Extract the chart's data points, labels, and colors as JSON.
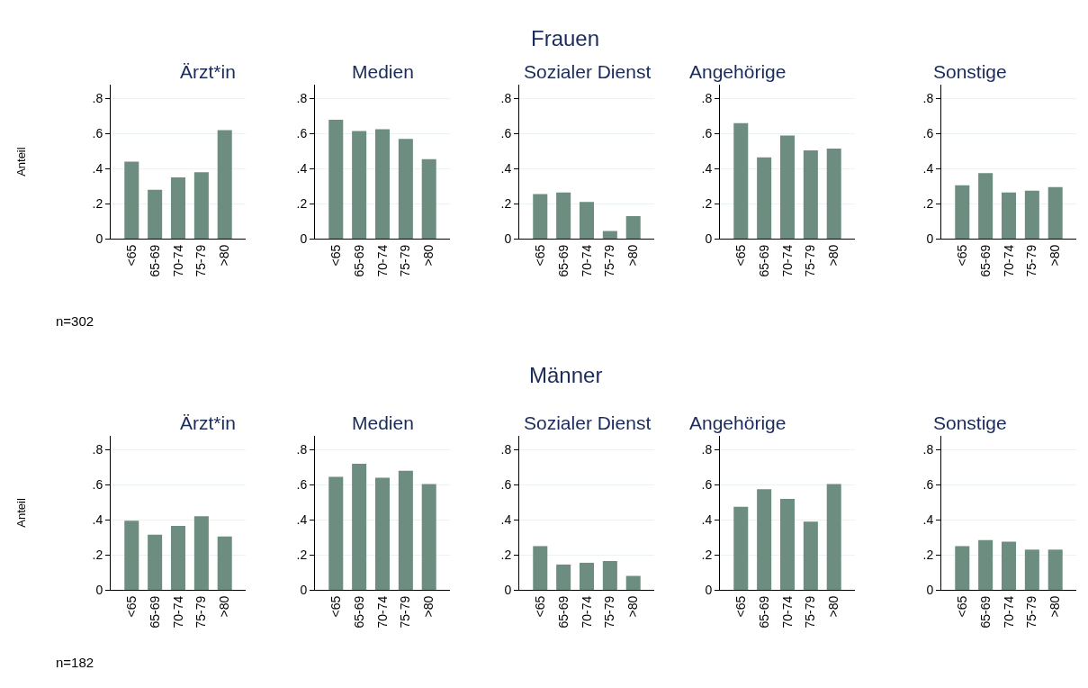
{
  "chart_data": [
    {
      "type": "bar",
      "title": "Ärzt*in",
      "ylabel": "Anteil",
      "annotations": [
        "Frauen",
        "n=302"
      ],
      "categories": [
        "<65",
        "65-69",
        "70-74",
        "75-79",
        ">80"
      ],
      "values": [
        0.44,
        0.28,
        0.35,
        0.38,
        0.62
      ],
      "color": "#6e8d81",
      "ylim": [
        0,
        0.88
      ],
      "yticks": [
        0,
        {
          "value": 0.2,
          "label": ".2"
        },
        {
          "value": 0.4,
          "label": ".4"
        },
        {
          "value": 0.6,
          "label": ".6"
        },
        {
          "value": 0.8,
          "label": ".8"
        }
      ],
      "grid": "y",
      "legend": false
    },
    {
      "type": "bar",
      "title": "Medien",
      "categories": [
        "<65",
        "65-69",
        "70-74",
        "75-79",
        ">80"
      ],
      "values": [
        0.68,
        0.615,
        0.625,
        0.57,
        0.455
      ],
      "color": "#6e8d81",
      "ylim": [
        0,
        0.88
      ],
      "yticks": [
        0,
        {
          "value": 0.2,
          "label": ".2"
        },
        {
          "value": 0.4,
          "label": ".4"
        },
        {
          "value": 0.6,
          "label": ".6"
        },
        {
          "value": 0.8,
          "label": ".8"
        }
      ],
      "grid": "y",
      "legend": false
    },
    {
      "type": "bar",
      "title": "Sozialer Dienst",
      "categories": [
        "<65",
        "65-69",
        "70-74",
        "75-79",
        ">80"
      ],
      "values": [
        0.255,
        0.265,
        0.21,
        0.045,
        0.13
      ],
      "color": "#6e8d81",
      "ylim": [
        0,
        0.88
      ],
      "yticks": [
        0,
        {
          "value": 0.2,
          "label": ".2"
        },
        {
          "value": 0.4,
          "label": ".4"
        },
        {
          "value": 0.6,
          "label": ".6"
        },
        {
          "value": 0.8,
          "label": ".8"
        }
      ],
      "grid": "y",
      "legend": false
    },
    {
      "type": "bar",
      "title": "Angehörige",
      "categories": [
        "<65",
        "65-69",
        "70-74",
        "75-79",
        ">80"
      ],
      "values": [
        0.66,
        0.465,
        0.59,
        0.505,
        0.515
      ],
      "color": "#6e8d81",
      "ylim": [
        0,
        0.88
      ],
      "yticks": [
        0,
        {
          "value": 0.2,
          "label": ".2"
        },
        {
          "value": 0.4,
          "label": ".4"
        },
        {
          "value": 0.6,
          "label": ".6"
        },
        {
          "value": 0.8,
          "label": ".8"
        }
      ],
      "grid": "y",
      "legend": false
    },
    {
      "type": "bar",
      "title": "Sonstige",
      "categories": [
        "<65",
        "65-69",
        "70-74",
        "75-79",
        ">80"
      ],
      "values": [
        0.305,
        0.375,
        0.265,
        0.275,
        0.295
      ],
      "color": "#6e8d81",
      "ylim": [
        0,
        0.88
      ],
      "yticks": [
        0,
        {
          "value": 0.2,
          "label": ".2"
        },
        {
          "value": 0.4,
          "label": ".4"
        },
        {
          "value": 0.6,
          "label": ".6"
        },
        {
          "value": 0.8,
          "label": ".8"
        }
      ],
      "grid": "y",
      "legend": false
    },
    {
      "type": "bar",
      "title": "Ärzt*in",
      "ylabel": "Anteil",
      "annotations": [
        "Männer",
        "n=182"
      ],
      "categories": [
        "<65",
        "65-69",
        "70-74",
        "75-79",
        ">80"
      ],
      "values": [
        0.395,
        0.315,
        0.365,
        0.42,
        0.305
      ],
      "color": "#6e8d81",
      "ylim": [
        0,
        0.88
      ],
      "yticks": [
        0,
        {
          "value": 0.2,
          "label": ".2"
        },
        {
          "value": 0.4,
          "label": ".4"
        },
        {
          "value": 0.6,
          "label": ".6"
        },
        {
          "value": 0.8,
          "label": ".8"
        }
      ],
      "grid": "y",
      "legend": false
    },
    {
      "type": "bar",
      "title": "Medien",
      "categories": [
        "<65",
        "65-69",
        "70-74",
        "75-79",
        ">80"
      ],
      "values": [
        0.645,
        0.72,
        0.64,
        0.68,
        0.605
      ],
      "color": "#6e8d81",
      "ylim": [
        0,
        0.88
      ],
      "yticks": [
        0,
        {
          "value": 0.2,
          "label": ".2"
        },
        {
          "value": 0.4,
          "label": ".4"
        },
        {
          "value": 0.6,
          "label": ".6"
        },
        {
          "value": 0.8,
          "label": ".8"
        }
      ],
      "grid": "y",
      "legend": false
    },
    {
      "type": "bar",
      "title": "Sozialer Dienst",
      "categories": [
        "<65",
        "65-69",
        "70-74",
        "75-79",
        ">80"
      ],
      "values": [
        0.25,
        0.145,
        0.155,
        0.165,
        0.08
      ],
      "color": "#6e8d81",
      "ylim": [
        0,
        0.88
      ],
      "yticks": [
        0,
        {
          "value": 0.2,
          "label": ".2"
        },
        {
          "value": 0.4,
          "label": ".4"
        },
        {
          "value": 0.6,
          "label": ".6"
        },
        {
          "value": 0.8,
          "label": ".8"
        }
      ],
      "grid": "y",
      "legend": false
    },
    {
      "type": "bar",
      "title": "Angehörige",
      "categories": [
        "<65",
        "65-69",
        "70-74",
        "75-79",
        ">80"
      ],
      "values": [
        0.475,
        0.575,
        0.52,
        0.39,
        0.605
      ],
      "color": "#6e8d81",
      "ylim": [
        0,
        0.88
      ],
      "yticks": [
        0,
        {
          "value": 0.2,
          "label": ".2"
        },
        {
          "value": 0.4,
          "label": ".4"
        },
        {
          "value": 0.6,
          "label": ".6"
        },
        {
          "value": 0.8,
          "label": ".8"
        }
      ],
      "grid": "y",
      "legend": false
    },
    {
      "type": "bar",
      "title": "Sonstige",
      "categories": [
        "<65",
        "65-69",
        "70-74",
        "75-79",
        ">80"
      ],
      "values": [
        0.25,
        0.285,
        0.275,
        0.23,
        0.23
      ],
      "color": "#6e8d81",
      "ylim": [
        0,
        0.88
      ],
      "yticks": [
        0,
        {
          "value": 0.2,
          "label": ".2"
        },
        {
          "value": 0.4,
          "label": ".4"
        },
        {
          "value": 0.6,
          "label": ".6"
        },
        {
          "value": 0.8,
          "label": ".8"
        }
      ],
      "grid": "y",
      "legend": false
    }
  ]
}
